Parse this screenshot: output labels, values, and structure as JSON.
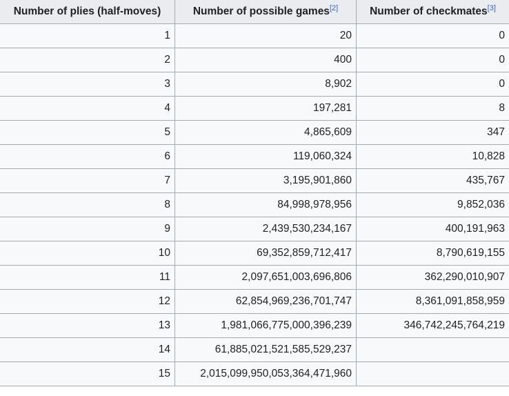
{
  "table": {
    "headers": [
      {
        "label": "Number of plies (half-moves)",
        "ref": ""
      },
      {
        "label": "Number of possible games",
        "ref": "[2]"
      },
      {
        "label": "Number of checkmates",
        "ref": "[3]"
      }
    ],
    "rows": [
      [
        "1",
        "20",
        "0"
      ],
      [
        "2",
        "400",
        "0"
      ],
      [
        "3",
        "8,902",
        "0"
      ],
      [
        "4",
        "197,281",
        "8"
      ],
      [
        "5",
        "4,865,609",
        "347"
      ],
      [
        "6",
        "119,060,324",
        "10,828"
      ],
      [
        "7",
        "3,195,901,860",
        "435,767"
      ],
      [
        "8",
        "84,998,978,956",
        "9,852,036"
      ],
      [
        "9",
        "2,439,530,234,167",
        "400,191,963"
      ],
      [
        "10",
        "69,352,859,712,417",
        "8,790,619,155"
      ],
      [
        "11",
        "2,097,651,003,696,806",
        "362,290,010,907"
      ],
      [
        "12",
        "62,854,969,236,701,747",
        "8,361,091,858,959"
      ],
      [
        "13",
        "1,981,066,775,000,396,239",
        "346,742,245,764,219"
      ],
      [
        "14",
        "61,885,021,521,585,529,237",
        ""
      ],
      [
        "15",
        "2,015,099,950,053,364,471,960",
        ""
      ]
    ]
  }
}
